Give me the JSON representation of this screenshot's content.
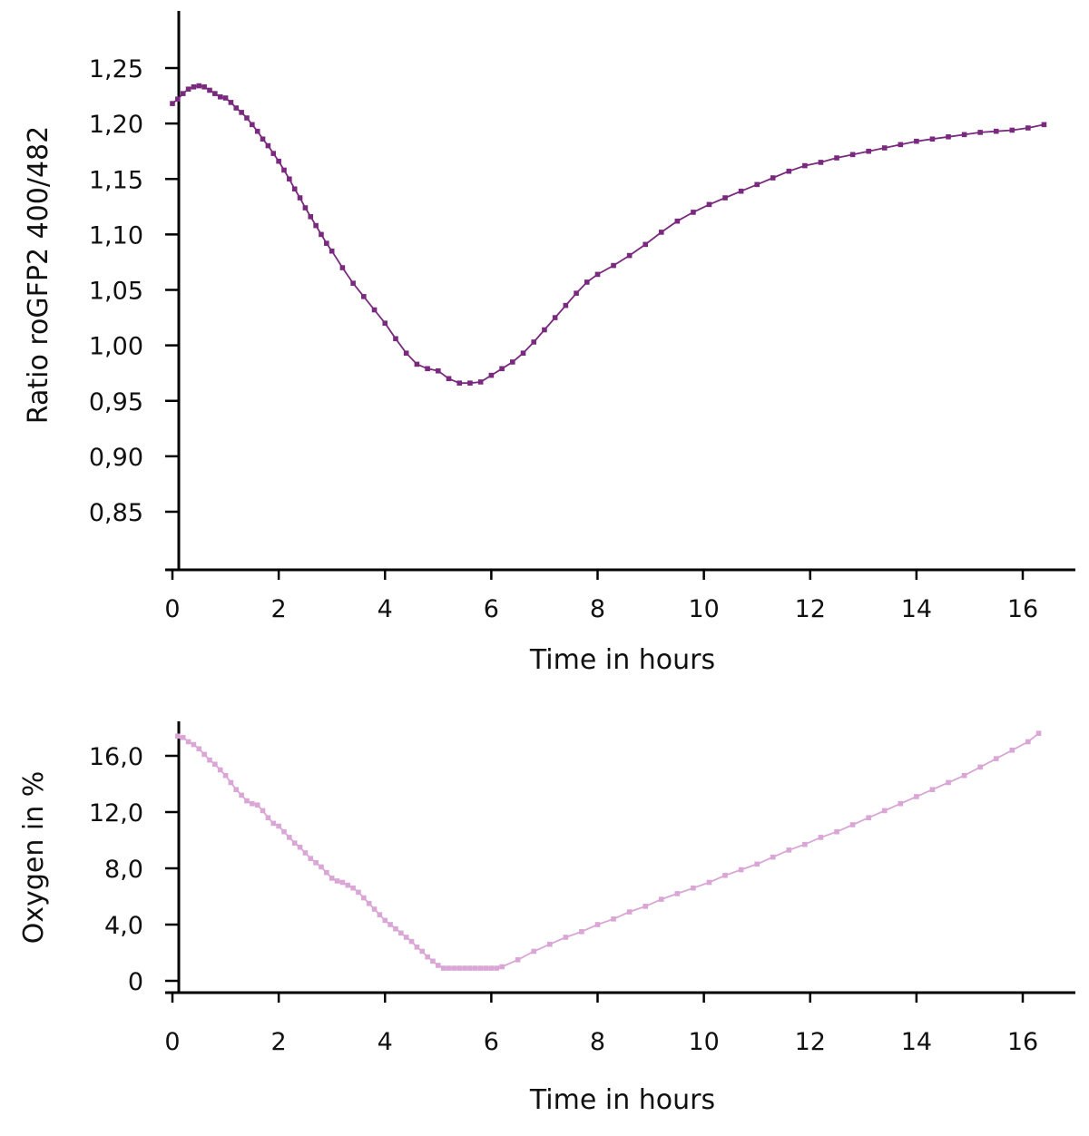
{
  "chart_data": [
    {
      "type": "line",
      "xlabel": "Time in hours",
      "ylabel": "Ratio roGFP2 400/482",
      "xlim": [
        0,
        17.2
      ],
      "ylim": [
        0.8,
        1.3
      ],
      "x_ticks": [
        0,
        2,
        4,
        6,
        8,
        10,
        12,
        14,
        16
      ],
      "x_tick_labels": [
        "0",
        "2",
        "4",
        "6",
        "8",
        "10",
        "12",
        "14",
        "16"
      ],
      "y_ticks": [
        0.85,
        0.9,
        0.95,
        1.0,
        1.05,
        1.1,
        1.15,
        1.2,
        1.25
      ],
      "y_tick_labels": [
        "0,85",
        "0,90",
        "0,95",
        "1,00",
        "1,05",
        "1,10",
        "1,15",
        "1,20",
        "1,25"
      ],
      "grid": false,
      "series": [
        {
          "color": "#7a2a7e",
          "marker": "square",
          "x": [
            0.0,
            0.1,
            0.2,
            0.3,
            0.4,
            0.5,
            0.6,
            0.7,
            0.8,
            0.9,
            1.0,
            1.1,
            1.2,
            1.3,
            1.4,
            1.5,
            1.6,
            1.7,
            1.8,
            1.9,
            2.0,
            2.1,
            2.2,
            2.3,
            2.4,
            2.5,
            2.6,
            2.7,
            2.8,
            2.9,
            3.0,
            3.2,
            3.4,
            3.6,
            3.8,
            4.0,
            4.2,
            4.4,
            4.6,
            4.8,
            5.0,
            5.2,
            5.4,
            5.6,
            5.8,
            6.0,
            6.2,
            6.4,
            6.6,
            6.8,
            7.0,
            7.2,
            7.4,
            7.6,
            7.8,
            8.0,
            8.3,
            8.6,
            8.9,
            9.2,
            9.5,
            9.8,
            10.1,
            10.4,
            10.7,
            11.0,
            11.3,
            11.6,
            11.9,
            12.2,
            12.5,
            12.8,
            13.1,
            13.4,
            13.7,
            14.0,
            14.3,
            14.6,
            14.9,
            15.2,
            15.5,
            15.8,
            16.1,
            16.4
          ],
          "y": [
            1.218,
            1.222,
            1.227,
            1.231,
            1.233,
            1.234,
            1.233,
            1.23,
            1.227,
            1.224,
            1.223,
            1.219,
            1.214,
            1.21,
            1.205,
            1.199,
            1.193,
            1.186,
            1.18,
            1.173,
            1.166,
            1.158,
            1.15,
            1.141,
            1.133,
            1.124,
            1.116,
            1.108,
            1.1,
            1.092,
            1.085,
            1.07,
            1.056,
            1.044,
            1.032,
            1.02,
            1.006,
            0.993,
            0.983,
            0.979,
            0.977,
            0.97,
            0.966,
            0.966,
            0.967,
            0.973,
            0.979,
            0.985,
            0.993,
            1.003,
            1.014,
            1.025,
            1.036,
            1.047,
            1.057,
            1.064,
            1.072,
            1.081,
            1.091,
            1.102,
            1.112,
            1.12,
            1.127,
            1.133,
            1.139,
            1.145,
            1.151,
            1.157,
            1.162,
            1.165,
            1.169,
            1.172,
            1.175,
            1.178,
            1.181,
            1.184,
            1.186,
            1.188,
            1.19,
            1.192,
            1.193,
            1.194,
            1.196,
            1.199
          ]
        }
      ]
    },
    {
      "type": "line",
      "xlabel": "Time in hours",
      "ylabel": "Oxygen in %",
      "xlim": [
        0,
        17.2
      ],
      "ylim": [
        -0.8,
        19.5
      ],
      "x_ticks": [
        0,
        2,
        4,
        6,
        8,
        10,
        12,
        14,
        16
      ],
      "x_tick_labels": [
        "0",
        "2",
        "4",
        "6",
        "8",
        "10",
        "12",
        "14",
        "16"
      ],
      "y_ticks": [
        0,
        4,
        8,
        12,
        16
      ],
      "y_tick_labels": [
        "0",
        "4,0",
        "8,0",
        "12,0",
        "16,0"
      ],
      "grid": false,
      "series": [
        {
          "color": "#d9a6d6",
          "marker": "square",
          "x": [
            0.1,
            0.2,
            0.3,
            0.4,
            0.5,
            0.6,
            0.7,
            0.8,
            0.9,
            1.0,
            1.1,
            1.2,
            1.3,
            1.4,
            1.5,
            1.6,
            1.7,
            1.8,
            1.9,
            2.0,
            2.1,
            2.2,
            2.3,
            2.4,
            2.5,
            2.6,
            2.7,
            2.8,
            2.9,
            3.0,
            3.1,
            3.2,
            3.3,
            3.4,
            3.5,
            3.6,
            3.7,
            3.8,
            3.9,
            4.0,
            4.1,
            4.2,
            4.3,
            4.4,
            4.5,
            4.6,
            4.7,
            4.8,
            4.9,
            5.0,
            5.1,
            5.2,
            5.3,
            5.4,
            5.5,
            5.6,
            5.7,
            5.8,
            5.9,
            6.0,
            6.1,
            6.2,
            6.5,
            6.8,
            7.1,
            7.4,
            7.7,
            8.0,
            8.3,
            8.6,
            8.9,
            9.2,
            9.5,
            9.8,
            10.1,
            10.4,
            10.7,
            11.0,
            11.3,
            11.6,
            11.9,
            12.2,
            12.5,
            12.8,
            13.1,
            13.4,
            13.7,
            14.0,
            14.3,
            14.6,
            14.9,
            15.2,
            15.5,
            15.8,
            16.1,
            16.3
          ],
          "y": [
            17.4,
            17.3,
            17.0,
            16.8,
            16.5,
            16.1,
            15.7,
            15.4,
            15.0,
            14.6,
            14.1,
            13.6,
            13.2,
            12.8,
            12.6,
            12.5,
            12.1,
            11.6,
            11.2,
            11.0,
            10.6,
            10.2,
            9.8,
            9.5,
            9.1,
            8.7,
            8.4,
            8.1,
            7.7,
            7.3,
            7.1,
            7.0,
            6.8,
            6.6,
            6.3,
            5.9,
            5.5,
            5.1,
            4.7,
            4.3,
            4.0,
            3.7,
            3.4,
            3.1,
            2.8,
            2.4,
            2.1,
            1.7,
            1.4,
            1.1,
            0.9,
            0.9,
            0.9,
            0.9,
            0.9,
            0.9,
            0.9,
            0.9,
            0.9,
            0.9,
            0.9,
            1.0,
            1.5,
            2.1,
            2.6,
            3.1,
            3.5,
            4.0,
            4.4,
            4.9,
            5.3,
            5.8,
            6.2,
            6.6,
            7.0,
            7.5,
            7.9,
            8.3,
            8.8,
            9.3,
            9.7,
            10.2,
            10.6,
            11.1,
            11.6,
            12.1,
            12.6,
            13.1,
            13.6,
            14.1,
            14.6,
            15.2,
            15.8,
            16.4,
            17.0,
            17.6
          ]
        }
      ]
    }
  ]
}
